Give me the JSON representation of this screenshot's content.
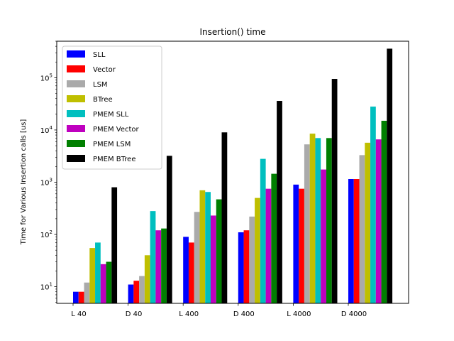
{
  "chart_data": {
    "type": "bar",
    "title": "Insertion() time",
    "xlabel": "",
    "ylabel": "Time for Various Insertion calls [us]",
    "yscale": "log",
    "ylim": [
      4.8,
      500000
    ],
    "yticks": [
      {
        "value": 10,
        "base": "10",
        "exp": "1"
      },
      {
        "value": 100,
        "base": "10",
        "exp": "2"
      },
      {
        "value": 1000,
        "base": "10",
        "exp": "3"
      },
      {
        "value": 10000,
        "base": "10",
        "exp": "4"
      },
      {
        "value": 100000,
        "base": "10",
        "exp": "5"
      }
    ],
    "categories": [
      "L 40",
      "D 40",
      "L 400",
      "D 400",
      "L 4000",
      "D 4000"
    ],
    "legend_position": "upper-left",
    "grid": false,
    "series": [
      {
        "name": "SLL",
        "color": "#0000ff",
        "values": [
          8,
          11,
          90,
          110,
          900,
          1150
        ]
      },
      {
        "name": "Vector",
        "color": "#ff0000",
        "values": [
          8,
          13,
          70,
          120,
          750,
          1150
        ]
      },
      {
        "name": "LSM",
        "color": "#aaaaaa",
        "values": [
          12,
          16,
          270,
          220,
          5300,
          3300
        ]
      },
      {
        "name": "BTree",
        "color": "#bfbf00",
        "values": [
          55,
          40,
          700,
          500,
          8500,
          5700
        ]
      },
      {
        "name": "PMEM SLL",
        "color": "#00bfbf",
        "values": [
          70,
          280,
          650,
          2800,
          7000,
          28000
        ]
      },
      {
        "name": "PMEM Vector",
        "color": "#bf00bf",
        "values": [
          27,
          120,
          230,
          750,
          1750,
          6600
        ]
      },
      {
        "name": "PMEM LSM",
        "color": "#007f00",
        "values": [
          30,
          130,
          470,
          1450,
          7000,
          15000
        ]
      },
      {
        "name": "PMEM BTree",
        "color": "#000000",
        "values": [
          800,
          3200,
          9000,
          36000,
          95000,
          360000
        ]
      }
    ]
  }
}
